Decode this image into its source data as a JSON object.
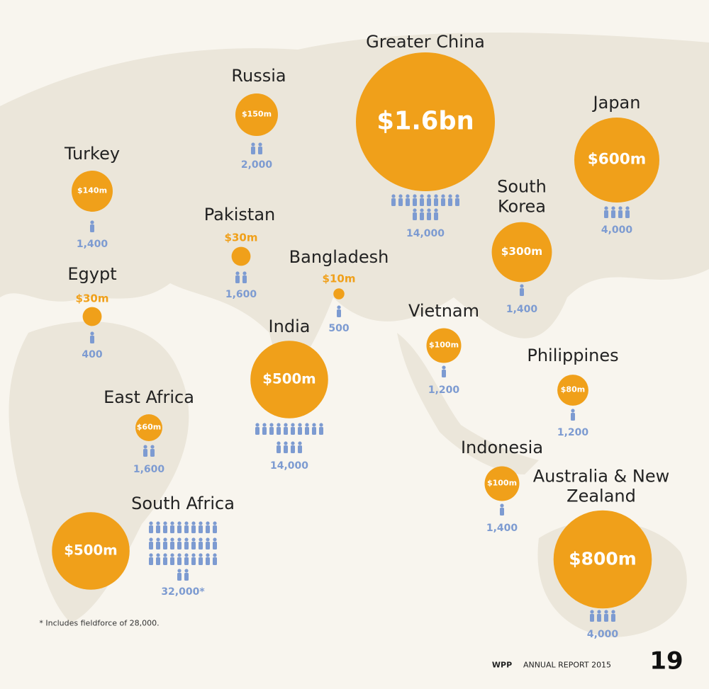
{
  "regions": [
    {
      "name": "Turkey",
      "revenue": {
        "value": 140,
        "label": "$140m"
      },
      "employees": {
        "value": 1400,
        "label": "1,400"
      }
    },
    {
      "name": "Russia",
      "revenue": {
        "value": 150,
        "label": "$150m"
      },
      "employees": {
        "value": 2000,
        "label": "2,000"
      }
    },
    {
      "name": "Greater China",
      "revenue": {
        "value": 1600,
        "label": "$1.6bn"
      },
      "employees": {
        "value": 14000,
        "label": "14,000"
      }
    },
    {
      "name": "Japan",
      "revenue": {
        "value": 600,
        "label": "$600m"
      },
      "employees": {
        "value": 4000,
        "label": "4,000"
      }
    },
    {
      "name": "Pakistan",
      "revenue": {
        "value": 30,
        "label": "$30m"
      },
      "employees": {
        "value": 1600,
        "label": "1,600"
      }
    },
    {
      "name": "Egypt",
      "revenue": {
        "value": 30,
        "label": "$30m"
      },
      "employees": {
        "value": 400,
        "label": "400"
      }
    },
    {
      "name": "Bangladesh",
      "revenue": {
        "value": 10,
        "label": "$10m"
      },
      "employees": {
        "value": 500,
        "label": "500"
      }
    },
    {
      "name": "South Korea",
      "revenue": {
        "value": 300,
        "label": "$300m"
      },
      "employees": {
        "value": 1400,
        "label": "1,400"
      }
    },
    {
      "name": "India",
      "revenue": {
        "value": 500,
        "label": "$500m"
      },
      "employees": {
        "value": 14000,
        "label": "14,000"
      }
    },
    {
      "name": "Vietnam",
      "revenue": {
        "value": 100,
        "label": "$100m"
      },
      "employees": {
        "value": 1200,
        "label": "1,200"
      }
    },
    {
      "name": "Philippines",
      "revenue": {
        "value": 80,
        "label": "$80m"
      },
      "employees": {
        "value": 1200,
        "label": "1,200"
      }
    },
    {
      "name": "East Africa",
      "revenue": {
        "value": 60,
        "label": "$60m"
      },
      "employees": {
        "value": 1600,
        "label": "1,600"
      }
    },
    {
      "name": "Indonesia",
      "revenue": {
        "value": 100,
        "label": "$100m"
      },
      "employees": {
        "value": 1400,
        "label": "1,400"
      }
    },
    {
      "name": "Australia & New Zealand",
      "revenue": {
        "value": 800,
        "label": "$800m"
      },
      "employees": {
        "value": 4000,
        "label": "4,000"
      }
    },
    {
      "name": "South Africa",
      "revenue": {
        "value": 500,
        "label": "$500m"
      },
      "employees": {
        "value": 32000,
        "label": "32,000*"
      }
    }
  ],
  "footnote": "* Includes fieldforce of 28,000.",
  "footer": {
    "brand": "WPP",
    "report": "ANNUAL REPORT 2015",
    "page": "19"
  }
}
